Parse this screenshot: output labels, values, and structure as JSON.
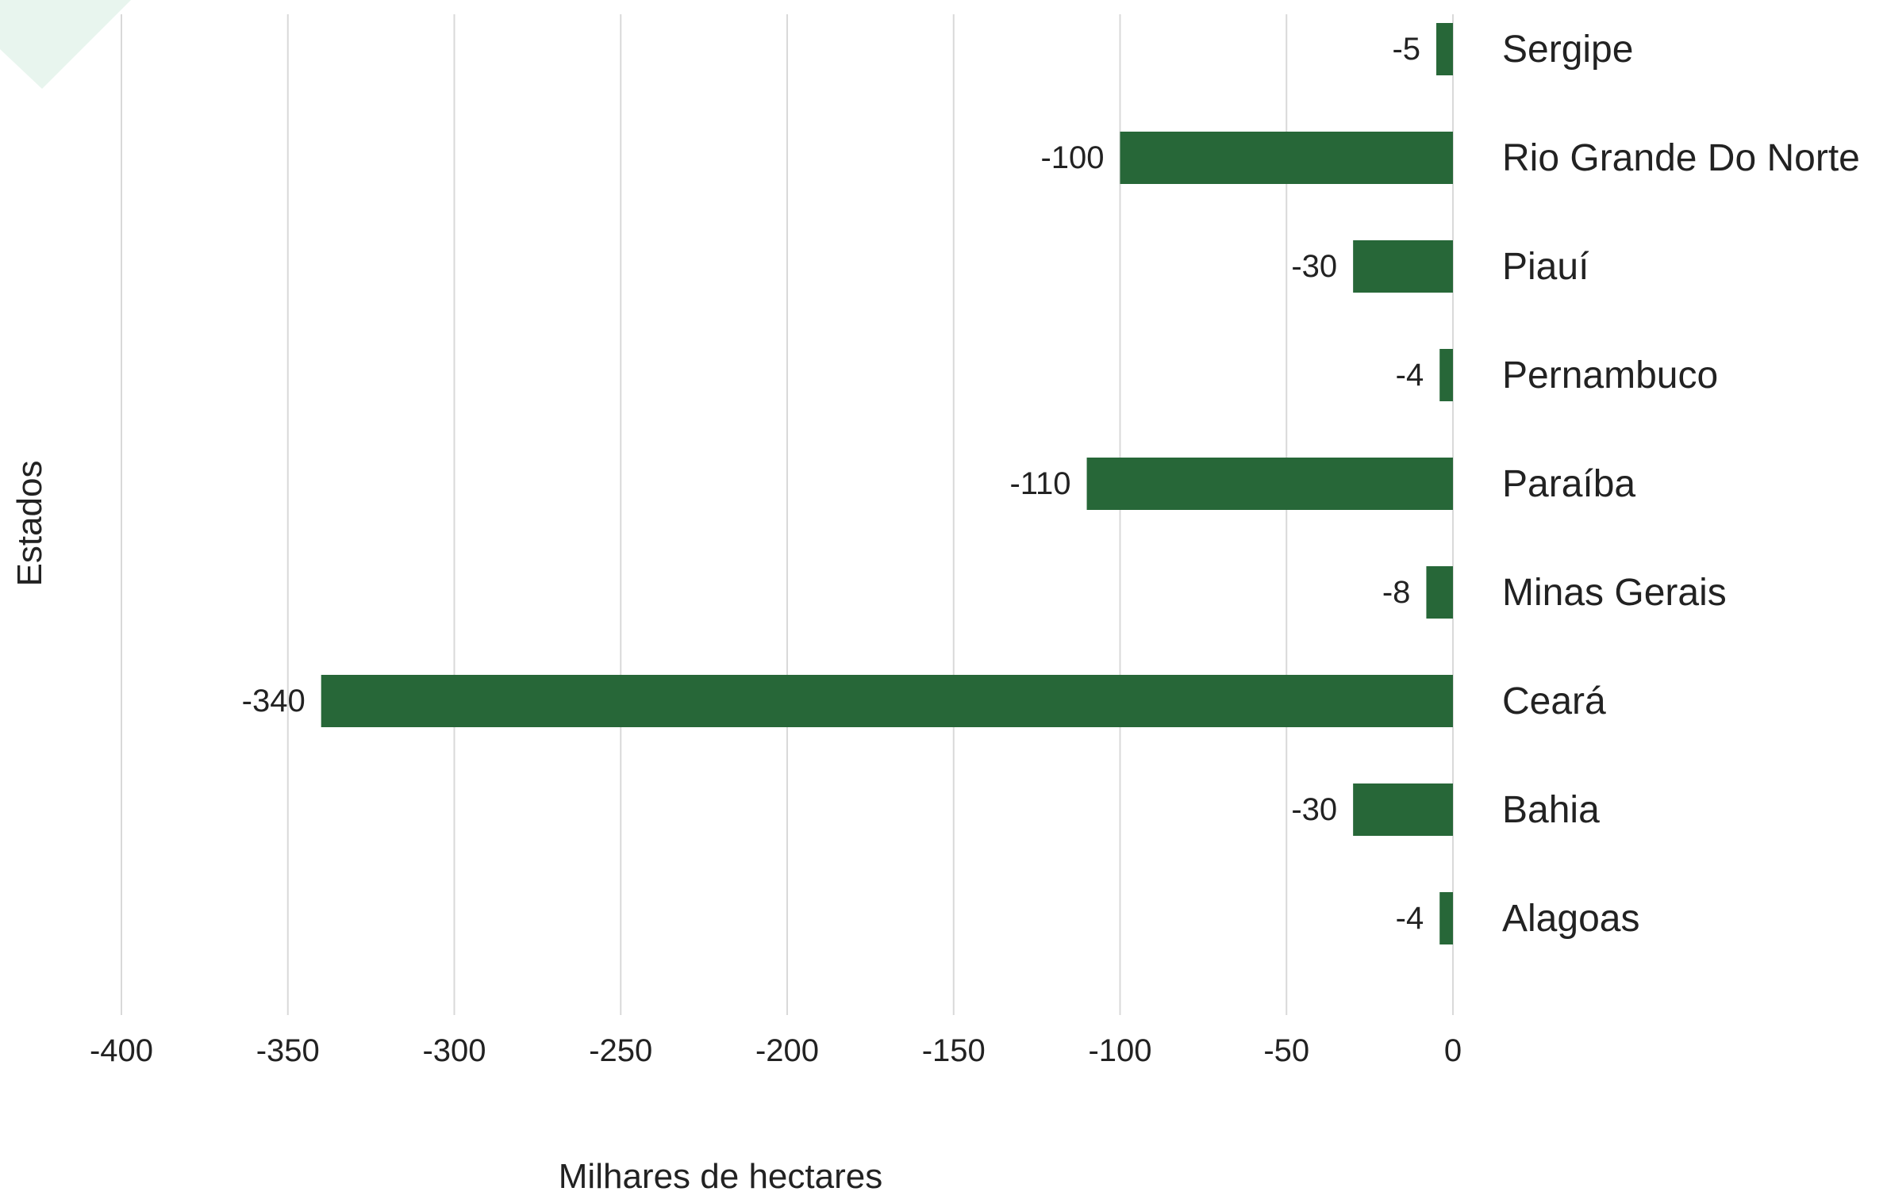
{
  "chart_data": {
    "type": "bar",
    "orientation": "horizontal",
    "categories": [
      "Sergipe",
      "Rio Grande Do Norte",
      "Piauí",
      "Pernambuco",
      "Paraíba",
      "Minas Gerais",
      "Ceará",
      "Bahia",
      "Alagoas"
    ],
    "values": [
      -5,
      -100,
      -30,
      -4,
      -110,
      -8,
      -340,
      -30,
      -4
    ],
    "data_labels": [
      "-5",
      "-100",
      "-30",
      "-4",
      "-110",
      "-8",
      "-340",
      "-30",
      "-4"
    ],
    "title": "",
    "xlabel": "Milhares de hectares",
    "ylabel": "Estados",
    "xlim": [
      -400,
      0
    ],
    "x_ticks": [
      -400,
      -350,
      -300,
      -250,
      -200,
      -150,
      -100,
      -50,
      0
    ],
    "x_tick_labels": [
      "-400",
      "-350",
      "-300",
      "-250",
      "-200",
      "-150",
      "-100",
      "-50",
      "0"
    ],
    "grid": "vertical",
    "legend": "none",
    "bar_color": "#276738",
    "grid_color": "#d9d9d9",
    "text_color": "#222222",
    "corner_accent_color": "#e8f5ee"
  }
}
